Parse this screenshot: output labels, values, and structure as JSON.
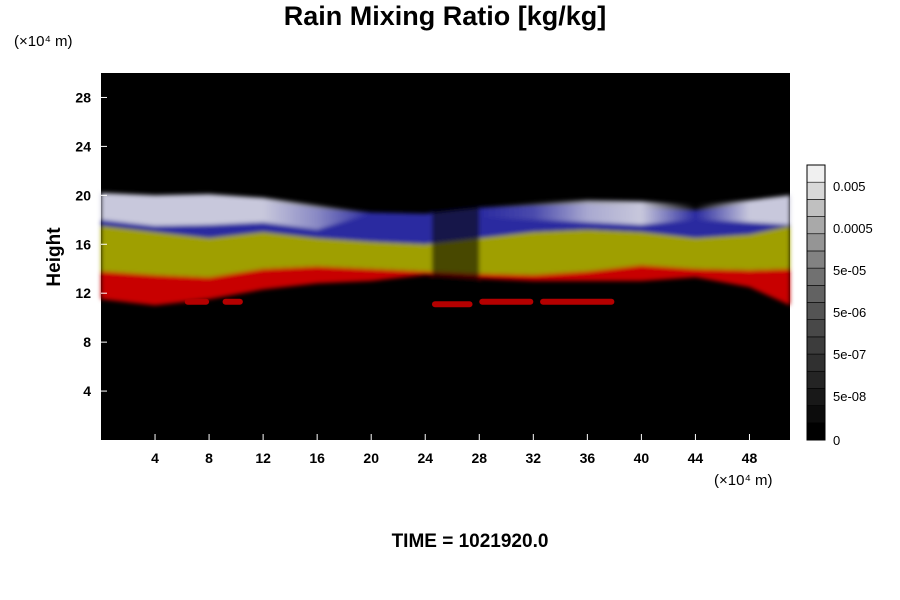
{
  "chart_data": {
    "type": "heatmap",
    "title": "Rain Mixing Ratio [kg/kg]",
    "xlabel": "",
    "ylabel": "Height",
    "x_unit": "(×10⁴ m)",
    "y_unit": "(×10⁴ m)",
    "xlim": [
      0,
      51
    ],
    "ylim": [
      0,
      30
    ],
    "xticks": [
      4,
      8,
      12,
      16,
      20,
      24,
      28,
      32,
      36,
      40,
      44,
      48
    ],
    "yticks": [
      4,
      8,
      12,
      16,
      20,
      24,
      28
    ],
    "colorbar": {
      "tick_labels": [
        "0.005",
        "0.0005",
        "5e-05",
        "5e-06",
        "5e-07",
        "5e-08",
        "0"
      ],
      "levels": 16,
      "colors": [
        "#000000",
        "#0c0c0c",
        "#181818",
        "#242424",
        "#303030",
        "#3c3c3c",
        "#484848",
        "#545454",
        "#626262",
        "#717171",
        "#828282",
        "#959595",
        "#a9a9a9",
        "#c0c0c0",
        "#d8d8d8",
        "#f0f0f0"
      ]
    },
    "bands": [
      {
        "name": "red",
        "color": "#c80000",
        "y_bottom": [
          11.5,
          11.0,
          11.5,
          12.3,
          12.8,
          13.0,
          13.5,
          13.2,
          13.0,
          13.0,
          13.0,
          13.3,
          12.5,
          11.0
        ],
        "y_top": [
          13.8,
          13.5,
          13.3,
          14.0,
          14.2,
          14.0,
          13.8,
          13.6,
          13.5,
          13.8,
          14.3,
          14.0,
          13.9,
          14.0
        ]
      },
      {
        "name": "yellow",
        "color": "#a8a800",
        "y_bottom": [
          13.8,
          13.5,
          13.3,
          14.0,
          14.2,
          14.0,
          13.8,
          13.6,
          13.5,
          13.8,
          14.3,
          14.0,
          13.9,
          14.0
        ],
        "y_top": [
          17.5,
          17.0,
          16.5,
          17.0,
          16.5,
          16.2,
          16.0,
          16.5,
          17.0,
          17.2,
          17.0,
          16.5,
          16.8,
          17.5
        ]
      },
      {
        "name": "blue",
        "color": "#2a2aa0",
        "y_bottom": [
          17.5,
          17.0,
          16.5,
          17.0,
          16.5,
          16.2,
          16.0,
          16.5,
          17.0,
          17.2,
          17.0,
          16.5,
          16.8,
          17.5
        ],
        "y_top": [
          19.8,
          19.6,
          19.8,
          19.5,
          19.0,
          18.6,
          18.5,
          19.0,
          19.2,
          19.3,
          19.0,
          18.8,
          19.3,
          19.8
        ]
      },
      {
        "name": "white",
        "color": "#c8c8dc",
        "y_bottom": [
          18.0,
          17.5,
          17.6,
          17.8,
          17.2,
          18.5,
          18.4,
          18.2,
          18.0,
          17.8,
          17.6,
          18.0,
          17.8,
          17.6
        ],
        "y_top": [
          20.2,
          20.0,
          20.1,
          19.8,
          19.2,
          18.6,
          18.5,
          19.0,
          19.4,
          19.6,
          19.5,
          19.2,
          19.6,
          20.0
        ]
      }
    ],
    "band_x": [
      0,
      4,
      8,
      12,
      16,
      20,
      24,
      28,
      32,
      36,
      40,
      44,
      48,
      51
    ],
    "white_mask": [
      1,
      1,
      1,
      1,
      0.6,
      0,
      0,
      0,
      0.2,
      0.8,
      1,
      0,
      1,
      1
    ],
    "rain_streaks": [
      {
        "x0": 6.2,
        "x1": 8.0,
        "y": 11.3
      },
      {
        "x0": 9.0,
        "x1": 10.5,
        "y": 11.3
      },
      {
        "x0": 24.5,
        "x1": 27.5,
        "y": 11.1
      },
      {
        "x0": 28.0,
        "x1": 32.0,
        "y": 11.3
      },
      {
        "x0": 32.5,
        "x1": 38.0,
        "y": 11.3
      }
    ]
  },
  "time_label": "TIME = 1021920.0"
}
